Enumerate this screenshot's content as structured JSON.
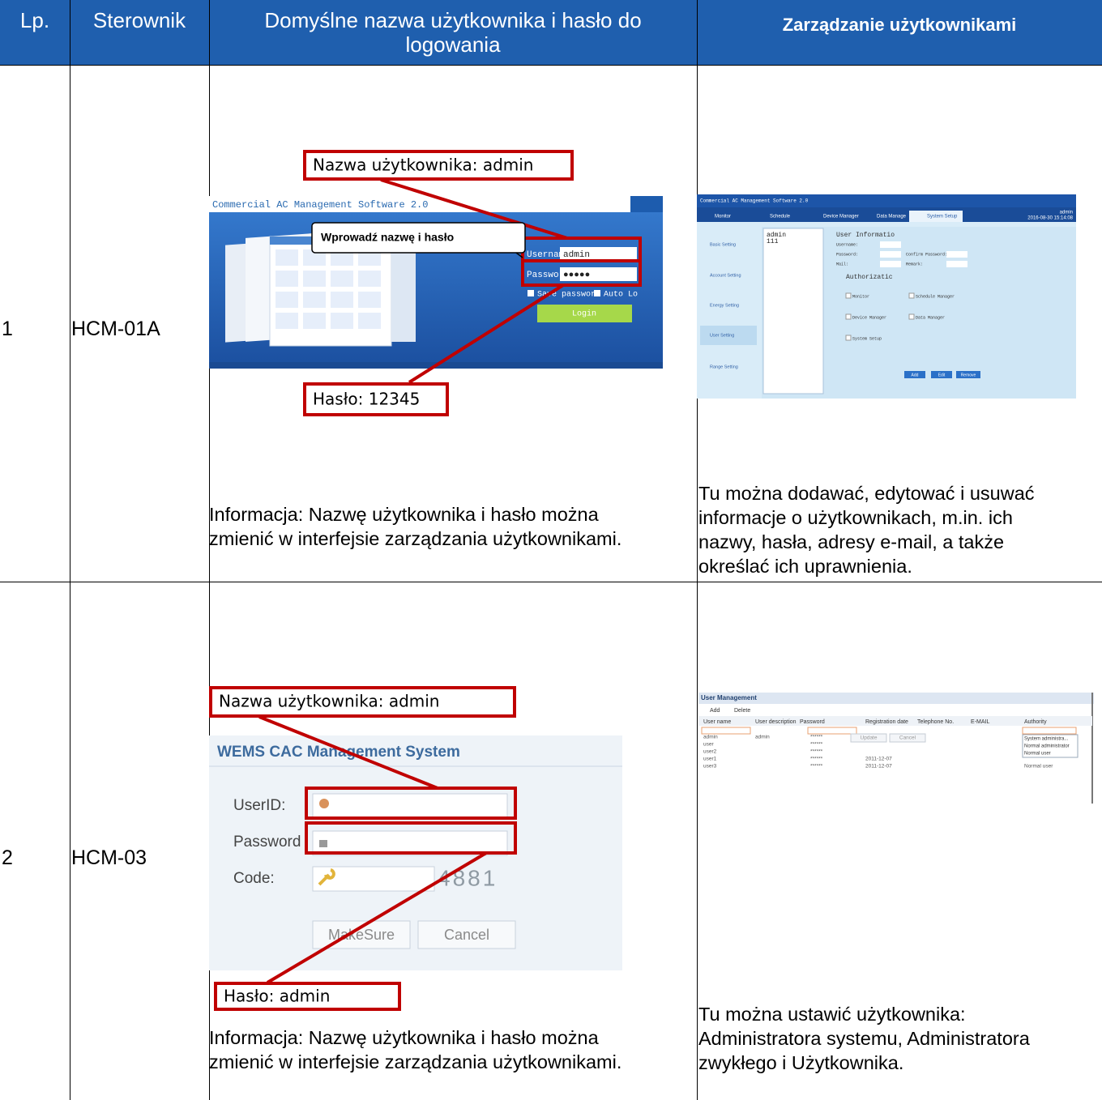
{
  "header": {
    "lp": "Lp.",
    "controller": "Sterownik",
    "login_lines": [
      "Domyślne nazwa użytkownika i hasło do",
      "logowania"
    ],
    "management": "Zarządzanie użytkownikami"
  },
  "rows": [
    {
      "number": "1",
      "controller": "HCM-01A",
      "login_screen": {
        "title": "Commercial AC Management Software 2.0",
        "username_label": "Username",
        "username": "admin",
        "password_label": "Password",
        "password": "●●●●●",
        "save_password": "Save password",
        "auto_login": "Auto Lo",
        "login_button": "Login"
      },
      "callouts": {
        "username": "Nazwa użytkownika: admin",
        "hint": "Wprowadź nazwę i hasło",
        "password": "Hasło: 12345"
      },
      "note_lines": [
        "Informacja: Nazwę użytkownika i hasło można",
        "zmienić w interfejsie zarządzania użytkownikami."
      ],
      "management_screen": {
        "title": "Commercial AC Management Software 2.0",
        "tabs": [
          "Monitor",
          "Schedule",
          "Device Manager",
          "Data Manage",
          "System Setup"
        ],
        "user": "admin",
        "datetime": "2016-08-30 15:14:08",
        "menu": [
          "Basic Setting",
          "Account Setting",
          "Energy Setting",
          "User Setting",
          "Range Setting"
        ],
        "users": [
          "admin",
          "111"
        ],
        "section": "User Informatio",
        "fields": [
          "Username:",
          "Password:",
          "Confirm Password:",
          "Mail:",
          "Remark:"
        ],
        "authorization": "Authorizatic",
        "permissions": [
          "Monitor",
          "Schedule Manager",
          "Device Manager",
          "Data Manager",
          "System Setup"
        ],
        "buttons": [
          "Add",
          "Edit",
          "Remove"
        ]
      },
      "management_note_lines": [
        "Tu można dodawać, edytować i usuwać",
        "informacje o użytkownikach, m.in. ich",
        "nazwy, hasła, adresy e-mail, a także",
        "określać ich uprawnienia."
      ]
    },
    {
      "number": "2",
      "controller": "HCM-03",
      "login_screen": {
        "title": "WEMS CAC Management System",
        "userid_label": "UserID:",
        "password_label": "Password",
        "code_label": "Code:",
        "code": "4881",
        "confirm_button": "MakeSure",
        "cancel_button": "Cancel"
      },
      "callouts": {
        "username": "Nazwa użytkownika: admin",
        "password": "Hasło: admin"
      },
      "note_lines": [
        "Informacja: Nazwę użytkownika i hasło można",
        "zmienić w interfejsie zarządzania użytkownikami."
      ],
      "management_screen": {
        "title": "User Management",
        "toolbar": [
          "Add",
          "Delete"
        ],
        "columns": [
          "User name",
          "User description",
          "Password",
          "Registration date",
          "Telephone No.",
          "E-MAIL",
          "Authority"
        ],
        "users": [
          {
            "name": "admin",
            "description": "admin",
            "password": "******"
          },
          {
            "name": "user",
            "password": "******"
          },
          {
            "name": "user2",
            "password": "******"
          },
          {
            "name": "user1",
            "password": "******",
            "date": "2011-12-07"
          },
          {
            "name": "user3",
            "password": "******",
            "date": "2011-12-07",
            "authority": "Normal user"
          }
        ],
        "buttons": [
          "Update",
          "Cancel"
        ],
        "authority_options": [
          "System administra...",
          "Normal administrator",
          "Normal user"
        ]
      },
      "management_note_lines": [
        "Tu można ustawić użytkownika:",
        "Administratora systemu, Administratora",
        "zwykłego i Użytkownika."
      ]
    }
  ]
}
